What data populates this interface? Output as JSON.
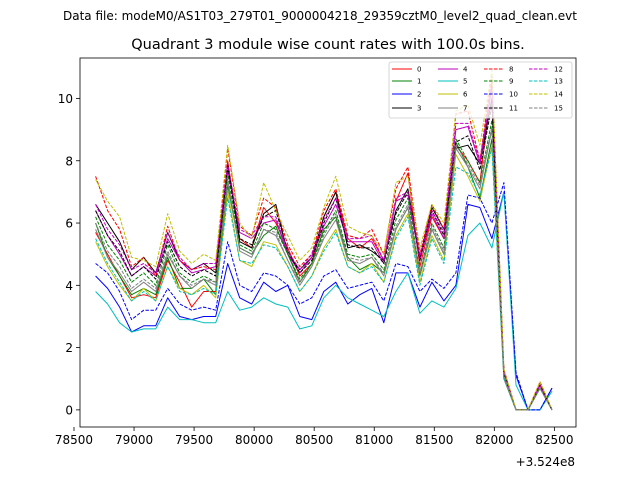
{
  "chart_data": {
    "type": "line",
    "suptitle": "Data file: modeM0/AS1T03_279T01_9000004218_29359cztM0_level2_quad_clean.evt",
    "title": "Quadrant 3 module wise count rates with 100.0s bins.",
    "xlabel": "",
    "ylabel": "",
    "x_offset_label": "+3.524e8",
    "xlim": [
      78550,
      82680
    ],
    "ylim": [
      -0.55,
      11.3
    ],
    "xticks": [
      78500,
      79000,
      79500,
      80000,
      80500,
      81000,
      81500,
      82000,
      82500
    ],
    "xtick_labels": [
      "78500",
      "79000",
      "79500",
      "80000",
      "80500",
      "81000",
      "81500",
      "82000",
      "82500"
    ],
    "yticks": [
      0,
      2,
      4,
      6,
      8,
      10
    ],
    "ytick_labels": [
      "0",
      "2",
      "4",
      "6",
      "8",
      "10"
    ],
    "legend_position": "top-right",
    "x": [
      78680,
      78780,
      78880,
      78980,
      79080,
      79180,
      79280,
      79380,
      79480,
      79580,
      79680,
      79780,
      79880,
      79980,
      80080,
      80180,
      80280,
      80380,
      80480,
      80580,
      80680,
      80780,
      80880,
      80980,
      81080,
      81180,
      81280,
      81380,
      81480,
      81580,
      81680,
      81780,
      81880,
      81980,
      82080,
      82180,
      82280,
      82380,
      82480
    ],
    "series": [
      {
        "name": "0",
        "color": "#ff0000",
        "dash": "solid",
        "values": [
          5.7,
          5.0,
          4.3,
          3.6,
          3.7,
          3.6,
          4.8,
          4.1,
          3.3,
          3.8,
          3.8,
          8.0,
          5.5,
          5.2,
          6.5,
          6.0,
          5.2,
          4.3,
          4.7,
          6.2,
          7.0,
          5.5,
          5.2,
          5.5,
          4.8,
          6.7,
          7.6,
          4.6,
          6.2,
          5.5,
          8.5,
          8.0,
          7.3,
          10.5,
          1.0,
          0.0,
          0.0,
          0.8,
          0.0
        ]
      },
      {
        "name": "1",
        "color": "#008000",
        "dash": "solid",
        "values": [
          6.0,
          4.9,
          4.3,
          3.7,
          3.9,
          3.7,
          4.9,
          3.9,
          3.9,
          4.2,
          3.7,
          7.2,
          5.2,
          5.0,
          5.6,
          5.9,
          5.0,
          4.1,
          4.7,
          5.8,
          6.2,
          4.9,
          4.5,
          4.7,
          4.4,
          5.8,
          6.5,
          4.3,
          5.8,
          5.0,
          8.6,
          7.8,
          6.8,
          8.7,
          1.1,
          0.0,
          0.0,
          0.7,
          0.0
        ]
      },
      {
        "name": "2",
        "color": "#0000ff",
        "dash": "solid",
        "values": [
          4.3,
          3.9,
          3.3,
          2.5,
          2.7,
          2.7,
          3.6,
          3.0,
          2.9,
          3.0,
          3.0,
          4.7,
          3.6,
          3.4,
          4.1,
          3.8,
          4.0,
          3.0,
          2.9,
          3.8,
          4.1,
          3.4,
          3.7,
          3.9,
          2.8,
          4.4,
          4.4,
          3.3,
          4.1,
          3.5,
          4.0,
          6.6,
          6.5,
          5.5,
          7.0,
          1.1,
          0.0,
          0.0,
          0.7
        ]
      },
      {
        "name": "3",
        "color": "#000000",
        "dash": "solid",
        "values": [
          6.6,
          6.0,
          5.4,
          4.5,
          4.9,
          4.4,
          5.7,
          4.8,
          4.5,
          4.7,
          4.4,
          7.9,
          5.4,
          5.2,
          6.3,
          6.6,
          5.0,
          4.5,
          4.9,
          6.2,
          7.0,
          5.2,
          5.3,
          5.1,
          4.8,
          6.4,
          7.1,
          4.9,
          6.5,
          5.8,
          8.4,
          8.5,
          7.9,
          10.0,
          1.2,
          0.0,
          0.0,
          0.8,
          0.0
        ]
      },
      {
        "name": "4",
        "color": "#bf00bf",
        "dash": "solid",
        "values": [
          6.4,
          5.6,
          5.0,
          4.3,
          4.6,
          4.3,
          5.5,
          4.8,
          4.4,
          4.5,
          4.6,
          7.7,
          5.7,
          5.5,
          6.0,
          6.1,
          5.0,
          4.4,
          4.9,
          5.9,
          6.6,
          5.4,
          5.4,
          5.4,
          4.7,
          6.7,
          6.9,
          4.8,
          6.3,
          5.5,
          9.0,
          9.1,
          7.9,
          10.4,
          1.1,
          0.0,
          0.0,
          0.8,
          0.0
        ]
      },
      {
        "name": "5",
        "color": "#00bfbf",
        "dash": "solid",
        "values": [
          3.8,
          3.4,
          2.8,
          2.5,
          2.6,
          2.6,
          3.3,
          2.9,
          2.9,
          2.8,
          2.8,
          3.8,
          3.2,
          3.3,
          3.6,
          3.4,
          3.3,
          2.6,
          2.7,
          3.6,
          4.0,
          3.6,
          3.4,
          3.2,
          3.0,
          3.8,
          4.4,
          3.1,
          3.5,
          3.3,
          3.9,
          5.6,
          6.0,
          5.2,
          7.0,
          0.8,
          0.0,
          0.0,
          0.6
        ]
      },
      {
        "name": "6",
        "color": "#bfbf00",
        "dash": "solid",
        "values": [
          5.4,
          4.6,
          4.0,
          3.5,
          3.9,
          3.5,
          4.6,
          3.9,
          3.7,
          4.0,
          3.6,
          7.0,
          4.8,
          4.6,
          5.4,
          5.3,
          4.6,
          3.8,
          4.3,
          5.2,
          5.8,
          4.6,
          4.4,
          4.7,
          4.1,
          5.6,
          6.3,
          4.1,
          5.6,
          4.8,
          8.2,
          7.5,
          6.7,
          8.5,
          1.0,
          0.0,
          0.0,
          0.7,
          0.0
        ]
      },
      {
        "name": "7",
        "color": "#808080",
        "dash": "solid",
        "values": [
          5.8,
          4.9,
          4.4,
          3.8,
          4.1,
          3.8,
          5.0,
          4.3,
          3.9,
          4.2,
          4.0,
          7.4,
          5.1,
          4.9,
          5.8,
          5.6,
          4.8,
          4.0,
          4.6,
          5.5,
          6.1,
          4.8,
          4.7,
          4.9,
          4.3,
          5.8,
          6.5,
          4.3,
          5.8,
          5.0,
          8.4,
          7.8,
          7.1,
          9.0,
          1.0,
          0.0,
          0.0,
          0.7,
          0.0
        ]
      },
      {
        "name": "8",
        "color": "#ff0000",
        "dash": "dashed",
        "values": [
          7.5,
          6.4,
          5.8,
          4.6,
          4.9,
          4.3,
          5.9,
          4.8,
          4.5,
          4.6,
          4.5,
          8.4,
          5.9,
          5.6,
          6.8,
          6.5,
          5.3,
          4.6,
          5.0,
          6.4,
          7.1,
          5.6,
          5.5,
          5.8,
          5.0,
          7.1,
          7.8,
          5.0,
          6.6,
          5.8,
          9.5,
          9.6,
          8.0,
          10.8,
          1.3,
          0.0,
          0.0,
          0.9,
          0.0
        ]
      },
      {
        "name": "9",
        "color": "#008000",
        "dash": "dashed",
        "values": [
          6.2,
          5.3,
          4.8,
          4.1,
          4.4,
          4.0,
          5.3,
          4.4,
          4.1,
          4.3,
          4.1,
          7.6,
          5.3,
          5.1,
          6.0,
          5.8,
          5.0,
          4.2,
          4.7,
          5.7,
          6.4,
          5.0,
          4.9,
          5.0,
          4.5,
          6.1,
          6.8,
          4.4,
          6.0,
          5.2,
          8.7,
          8.0,
          7.3,
          9.3,
          1.1,
          0.0,
          0.0,
          0.7,
          0.0
        ]
      },
      {
        "name": "10",
        "color": "#0000ff",
        "dash": "dashed",
        "values": [
          4.7,
          4.4,
          3.8,
          2.9,
          3.2,
          3.2,
          3.9,
          3.4,
          3.2,
          3.3,
          3.2,
          5.4,
          4.0,
          3.8,
          4.4,
          4.3,
          4.0,
          3.4,
          3.6,
          4.3,
          4.5,
          3.9,
          4.0,
          4.1,
          3.5,
          4.7,
          4.6,
          3.8,
          4.2,
          3.9,
          4.4,
          6.9,
          6.8,
          6.0,
          7.3,
          1.2,
          0.0,
          0.0,
          0.7
        ]
      },
      {
        "name": "11",
        "color": "#000000",
        "dash": "dashed",
        "values": [
          6.4,
          5.6,
          5.1,
          4.3,
          4.6,
          4.2,
          5.4,
          4.6,
          4.3,
          4.5,
          4.3,
          7.8,
          5.5,
          5.3,
          6.2,
          6.4,
          5.1,
          4.4,
          4.8,
          6.0,
          6.8,
          5.3,
          5.2,
          5.2,
          4.7,
          6.3,
          7.0,
          4.8,
          6.4,
          5.6,
          8.6,
          8.8,
          7.7,
          9.8,
          1.2,
          0.0,
          0.0,
          0.8,
          0.0
        ]
      },
      {
        "name": "12",
        "color": "#bf00bf",
        "dash": "dashed",
        "values": [
          6.6,
          5.8,
          5.3,
          4.5,
          4.7,
          4.4,
          5.7,
          4.9,
          4.5,
          4.7,
          4.7,
          7.9,
          5.8,
          5.6,
          6.2,
          6.2,
          5.1,
          4.5,
          5.0,
          6.1,
          6.8,
          5.5,
          5.5,
          5.6,
          4.8,
          6.8,
          7.0,
          4.9,
          6.4,
          5.7,
          9.2,
          9.2,
          8.0,
          10.5,
          1.2,
          0.0,
          0.0,
          0.8,
          0.0
        ]
      },
      {
        "name": "13",
        "color": "#00bfbf",
        "dash": "dashed",
        "values": [
          5.5,
          4.7,
          4.1,
          3.5,
          3.8,
          3.5,
          4.6,
          3.8,
          3.7,
          3.9,
          3.7,
          6.8,
          4.8,
          4.7,
          5.3,
          5.2,
          4.6,
          3.8,
          4.3,
          5.1,
          5.7,
          4.6,
          4.4,
          4.6,
          4.1,
          5.5,
          6.2,
          4.0,
          5.5,
          4.7,
          7.8,
          7.6,
          6.9,
          8.4,
          1.0,
          0.0,
          0.0,
          0.7,
          0.0
        ]
      },
      {
        "name": "14",
        "color": "#bfbf00",
        "dash": "dashed",
        "values": [
          7.4,
          6.7,
          6.2,
          4.9,
          4.8,
          4.6,
          6.3,
          5.1,
          4.7,
          5.0,
          4.8,
          8.5,
          6.0,
          5.5,
          7.3,
          6.4,
          5.6,
          4.8,
          5.2,
          6.5,
          7.5,
          5.9,
          5.7,
          5.6,
          5.0,
          7.3,
          7.5,
          5.2,
          6.6,
          6.0,
          9.6,
          9.8,
          8.5,
          10.9,
          1.3,
          0.0,
          0.0,
          0.9,
          0.0
        ]
      },
      {
        "name": "15",
        "color": "#808080",
        "dash": "dashed",
        "values": [
          6.0,
          5.1,
          4.6,
          3.9,
          4.2,
          3.9,
          5.1,
          4.3,
          4.0,
          4.2,
          4.1,
          7.3,
          5.2,
          5.0,
          5.8,
          5.7,
          4.8,
          4.1,
          4.6,
          5.6,
          6.3,
          4.9,
          4.8,
          4.9,
          4.4,
          5.9,
          6.6,
          4.4,
          5.9,
          5.1,
          8.5,
          7.9,
          7.2,
          9.1,
          1.1,
          0.0,
          0.0,
          0.7,
          0.0
        ]
      }
    ]
  }
}
